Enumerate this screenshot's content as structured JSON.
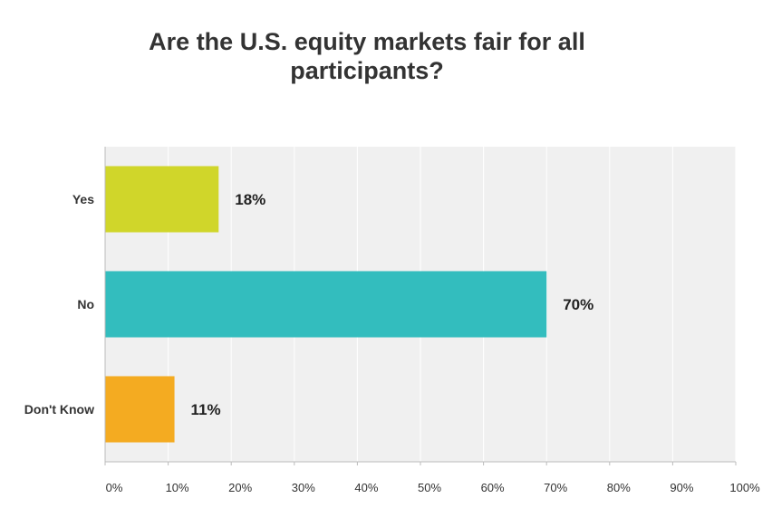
{
  "chart_data": {
    "type": "bar",
    "orientation": "horizontal",
    "title": "Are the U.S. equity markets fair for all participants?",
    "categories": [
      "Yes",
      "No",
      "Don't Know"
    ],
    "values": [
      18,
      70,
      11
    ],
    "data_labels": [
      "18%",
      "70%",
      "11%"
    ],
    "colors": [
      "#d0d62a",
      "#33bdbe",
      "#f4ab21"
    ],
    "xlim": [
      0,
      100
    ],
    "x_ticks": [
      0,
      10,
      20,
      30,
      40,
      50,
      60,
      70,
      80,
      90,
      100
    ],
    "x_tick_labels": [
      "0%",
      "10%",
      "20%",
      "30%",
      "40%",
      "50%",
      "60%",
      "70%",
      "80%",
      "90%",
      "100%"
    ],
    "xlabel": "",
    "ylabel": "",
    "grid": true,
    "background_color": "#f0f0f0",
    "grid_color": "#ffffff",
    "legend": "none"
  }
}
